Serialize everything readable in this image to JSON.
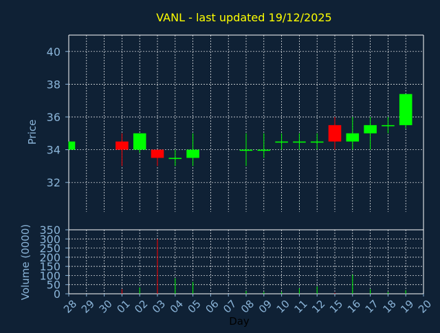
{
  "chart_data": {
    "type": "candlestick",
    "title": "VANL - last updated 19/12/2025",
    "colors": {
      "background": "#0f2135",
      "grid": "#ffffff",
      "title": "#ffff00",
      "axis_text": "#8ab4d8",
      "up": "#00ff00",
      "down": "#ff0000"
    },
    "xlabel": "Day",
    "x_ticks": [
      "28",
      "29",
      "30",
      "01",
      "02",
      "03",
      "04",
      "05",
      "06",
      "07",
      "08",
      "09",
      "10",
      "11",
      "12",
      "15",
      "16",
      "17",
      "18",
      "19",
      "20"
    ],
    "price_panel": {
      "ylabel": "Price",
      "ylim": [
        30.2,
        41.0
      ],
      "y_ticks": [
        32,
        34,
        36,
        38,
        40
      ]
    },
    "volume_panel": {
      "ylabel": "Volume (0000)",
      "ylim": [
        0,
        350
      ],
      "y_ticks": [
        0,
        50,
        100,
        150,
        200,
        250,
        300,
        350
      ]
    },
    "candles": [
      {
        "day": "28",
        "open": 34.0,
        "high": 34.5,
        "low": 34.0,
        "close": 34.5,
        "volume": 0
      },
      {
        "day": "01",
        "open": 34.5,
        "high": 35.0,
        "low": 33.0,
        "close": 34.0,
        "volume": 25
      },
      {
        "day": "02",
        "open": 34.0,
        "high": 35.0,
        "low": 33.8,
        "close": 35.0,
        "volume": 35
      },
      {
        "day": "03",
        "open": 34.0,
        "high": 34.0,
        "low": 33.0,
        "close": 33.5,
        "volume": 300
      },
      {
        "day": "04",
        "open": 33.5,
        "high": 34.0,
        "low": 33.0,
        "close": 33.5,
        "volume": 85
      },
      {
        "day": "05",
        "open": 33.5,
        "high": 35.0,
        "low": 33.0,
        "close": 34.0,
        "volume": 65
      },
      {
        "day": "08",
        "open": 34.0,
        "high": 35.0,
        "low": 33.0,
        "close": 34.0,
        "volume": 15
      },
      {
        "day": "09",
        "open": 34.0,
        "high": 35.0,
        "low": 33.5,
        "close": 34.0,
        "volume": 10
      },
      {
        "day": "10",
        "open": 34.5,
        "high": 35.0,
        "low": 34.0,
        "close": 34.5,
        "volume": 10
      },
      {
        "day": "11",
        "open": 34.5,
        "high": 35.0,
        "low": 34.0,
        "close": 34.5,
        "volume": 30
      },
      {
        "day": "12",
        "open": 34.5,
        "high": 35.0,
        "low": 34.0,
        "close": 34.5,
        "volume": 40
      },
      {
        "day": "15",
        "open": 35.5,
        "high": 36.0,
        "low": 34.0,
        "close": 34.5,
        "volume": 5
      },
      {
        "day": "16",
        "open": 34.5,
        "high": 36.0,
        "low": 34.0,
        "close": 35.0,
        "volume": 105
      },
      {
        "day": "17",
        "open": 35.0,
        "high": 36.0,
        "low": 34.0,
        "close": 35.5,
        "volume": 25
      },
      {
        "day": "18",
        "open": 35.5,
        "high": 36.0,
        "low": 35.0,
        "close": 35.5,
        "volume": 10
      },
      {
        "day": "19",
        "open": 35.5,
        "high": 37.4,
        "low": 35.3,
        "close": 37.4,
        "volume": 20
      }
    ]
  }
}
